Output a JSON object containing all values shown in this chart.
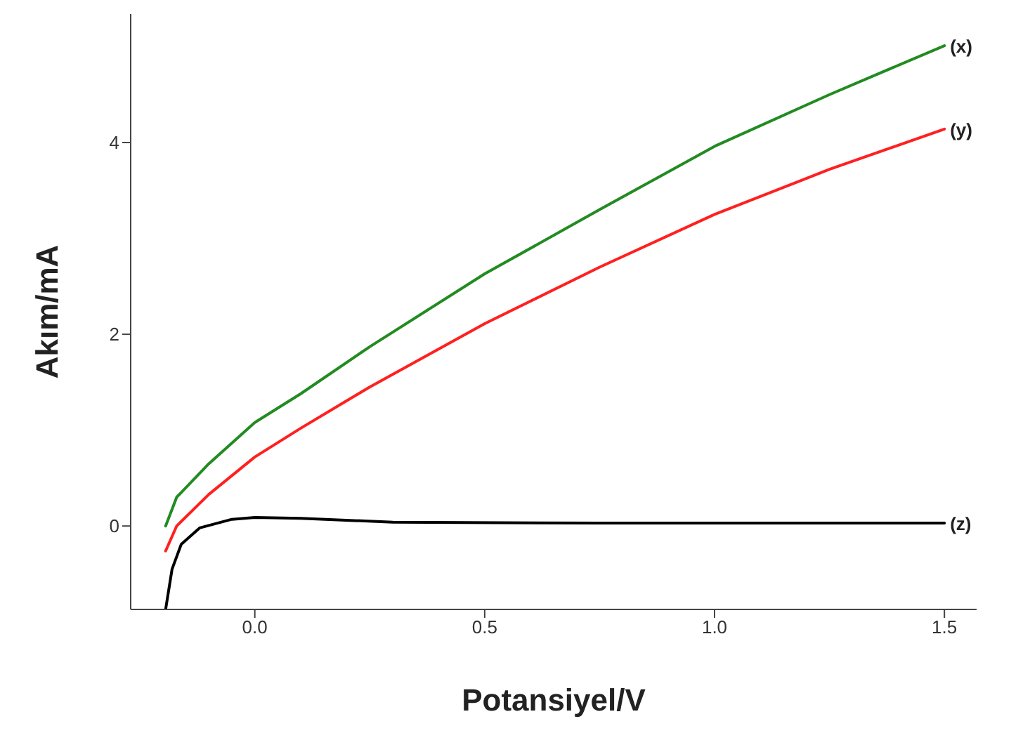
{
  "chart_data": {
    "type": "line",
    "xlabel": "Potansiyel/V",
    "ylabel": "Akım/mA",
    "xlim": [
      -0.27,
      1.57
    ],
    "ylim": [
      -0.87,
      5.34
    ],
    "xticks": [
      {
        "value": 0,
        "label": "0.0"
      },
      {
        "value": 0.5,
        "label": "0.5"
      },
      {
        "value": 1,
        "label": "1.0"
      },
      {
        "value": 1.5,
        "label": "1.5"
      }
    ],
    "yticks": [
      0,
      2,
      4
    ],
    "grid": false,
    "legend": false,
    "marker": "none",
    "line_style": "solid",
    "series": [
      {
        "name": "(x)",
        "color": "#228b22",
        "x": [
          -0.194,
          -0.17,
          -0.1,
          0,
          0.1,
          0.25,
          0.5,
          0.75,
          1.0,
          1.25,
          1.5
        ],
        "values": [
          0,
          0.3,
          0.65,
          1.08,
          1.38,
          1.87,
          2.63,
          3.3,
          3.96,
          4.5,
          5.01
        ]
      },
      {
        "name": "(y)",
        "color": "#ff2020",
        "x": [
          -0.194,
          -0.17,
          -0.1,
          0,
          0.1,
          0.25,
          0.5,
          0.75,
          1.0,
          1.25,
          1.5
        ],
        "values": [
          -0.26,
          0,
          0.33,
          0.72,
          1.02,
          1.45,
          2.11,
          2.7,
          3.25,
          3.72,
          4.14
        ]
      },
      {
        "name": "(z)",
        "color": "#000000",
        "x": [
          -0.194,
          -0.18,
          -0.16,
          -0.12,
          -0.05,
          0,
          0.1,
          0.3,
          0.75,
          1.5
        ],
        "values": [
          -0.87,
          -0.45,
          -0.19,
          -0.02,
          0.07,
          0.09,
          0.08,
          0.04,
          0.03,
          0.03
        ]
      }
    ]
  }
}
